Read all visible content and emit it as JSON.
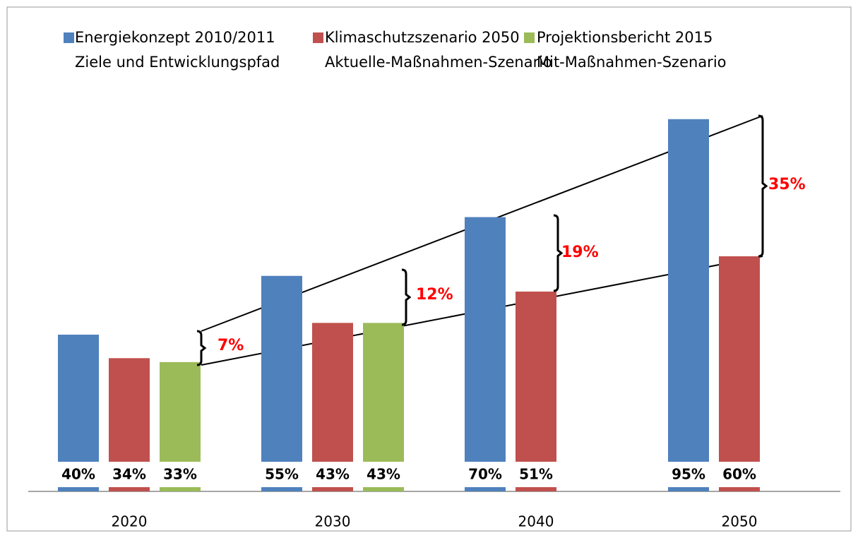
{
  "chart_data": {
    "type": "bar",
    "categories": [
      "2020",
      "2030",
      "2040",
      "2050"
    ],
    "series": [
      {
        "name": "Energiekonzept 2010/2011\nZiele und Entwicklungspfad",
        "color": "#4f81bd",
        "values": [
          40,
          55,
          70,
          95
        ],
        "value_labels": [
          "40%",
          "55%",
          "70%",
          "95%"
        ]
      },
      {
        "name": "Klimaschutzszenario 2050\nAktuelle-Maßnahmen-Szenario",
        "color": "#c0504d",
        "values": [
          34,
          43,
          51,
          60
        ],
        "value_labels": [
          "34%",
          "43%",
          "51%",
          "60%"
        ]
      },
      {
        "name": "Projektionsbericht 2015\nMit-Maßnahmen-Szenario",
        "color": "#9bbb59",
        "values": [
          33,
          43,
          null,
          null
        ],
        "value_labels": [
          "33%",
          "43%",
          null,
          null
        ]
      }
    ],
    "ylim": [
      0,
      100
    ],
    "annotations": [
      "7%",
      "12%",
      "19%",
      "35%"
    ]
  }
}
